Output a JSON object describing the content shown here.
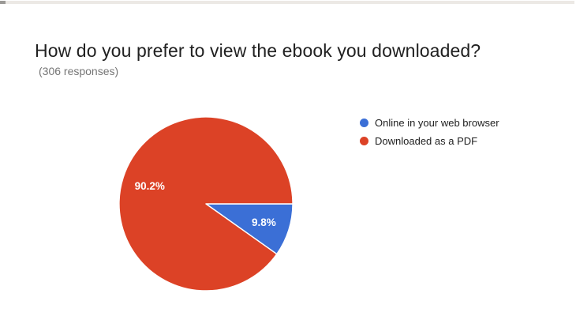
{
  "header": {
    "title": "How do you prefer to view the ebook you downloaded?",
    "subtitle": "(306 responses)"
  },
  "chart_data": {
    "type": "pie",
    "title": "How do you prefer to view the ebook you downloaded?",
    "responses_note": "(306 responses)",
    "total_responses": 306,
    "start_angle_deg": 0,
    "direction": "clockwise",
    "legend_position": "right",
    "slice_label_color": "#ffffff",
    "slices": [
      {
        "label": "Online in your web browser",
        "value_pct": 9.8,
        "display": "9.8%",
        "color": "#3b6fd6",
        "label_radius": 0.7
      },
      {
        "label": "Downloaded as a PDF",
        "value_pct": 90.2,
        "display": "90.2%",
        "color": "#dc4226",
        "label_radius": 0.68
      }
    ]
  }
}
